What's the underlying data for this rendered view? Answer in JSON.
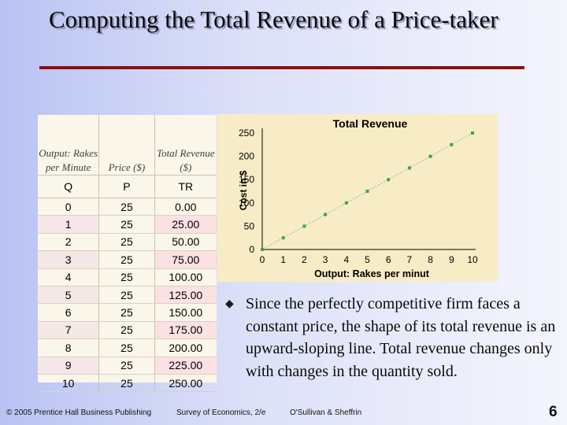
{
  "slide": {
    "title": "Computing the Total Revenue of a Price-taker",
    "bullet": "Since the perfectly competitive firm faces a constant price, the shape of its total revenue is an upward-sloping line. Total revenue changes only with changes in the quantity sold.",
    "footer_left": "© 2005 Prentice Hall Business Publishing",
    "footer_mid": "Survey of Economics, 2/e",
    "footer_right": "O'Sullivan & Sheffrin",
    "page_number": "6",
    "title_rule_color": "#8a1010",
    "bullet_icon": "diamond-bullet-icon"
  },
  "table": {
    "headers": [
      "Output: Rakes per Minute",
      "Price ($)",
      "Total Revenue ($)"
    ],
    "columns": [
      "Q",
      "P",
      "TR"
    ],
    "rows": [
      [
        "0",
        "25",
        "0.00"
      ],
      [
        "1",
        "25",
        "25.00"
      ],
      [
        "2",
        "25",
        "50.00"
      ],
      [
        "3",
        "25",
        "75.00"
      ],
      [
        "4",
        "25",
        "100.00"
      ],
      [
        "5",
        "25",
        "125.00"
      ],
      [
        "6",
        "25",
        "150.00"
      ],
      [
        "7",
        "25",
        "175.00"
      ],
      [
        "8",
        "25",
        "200.00"
      ],
      [
        "9",
        "25",
        "225.00"
      ],
      [
        "10",
        "25",
        "250.00"
      ]
    ],
    "highlight_color": "#fbe1e1"
  },
  "chart_data": {
    "type": "line",
    "title": "Total Revenue",
    "xlabel": "Output:  Rakes per minut",
    "ylabel": "Cost in $",
    "x": [
      0,
      1,
      2,
      3,
      4,
      5,
      6,
      7,
      8,
      9,
      10
    ],
    "series": [
      {
        "values": [
          0,
          25,
          50,
          75,
          100,
          125,
          150,
          175,
          200,
          225,
          250
        ],
        "color": "#3aa64a"
      }
    ],
    "xlim": [
      0,
      10
    ],
    "ylim": [
      0,
      250
    ],
    "xticks": [
      "0",
      "1",
      "2",
      "3",
      "4",
      "5",
      "6",
      "7",
      "8",
      "9",
      "10"
    ],
    "yticks": [
      "0",
      "50",
      "100",
      "150",
      "200",
      "250"
    ],
    "grid": false,
    "background": "#f8ecc6"
  }
}
